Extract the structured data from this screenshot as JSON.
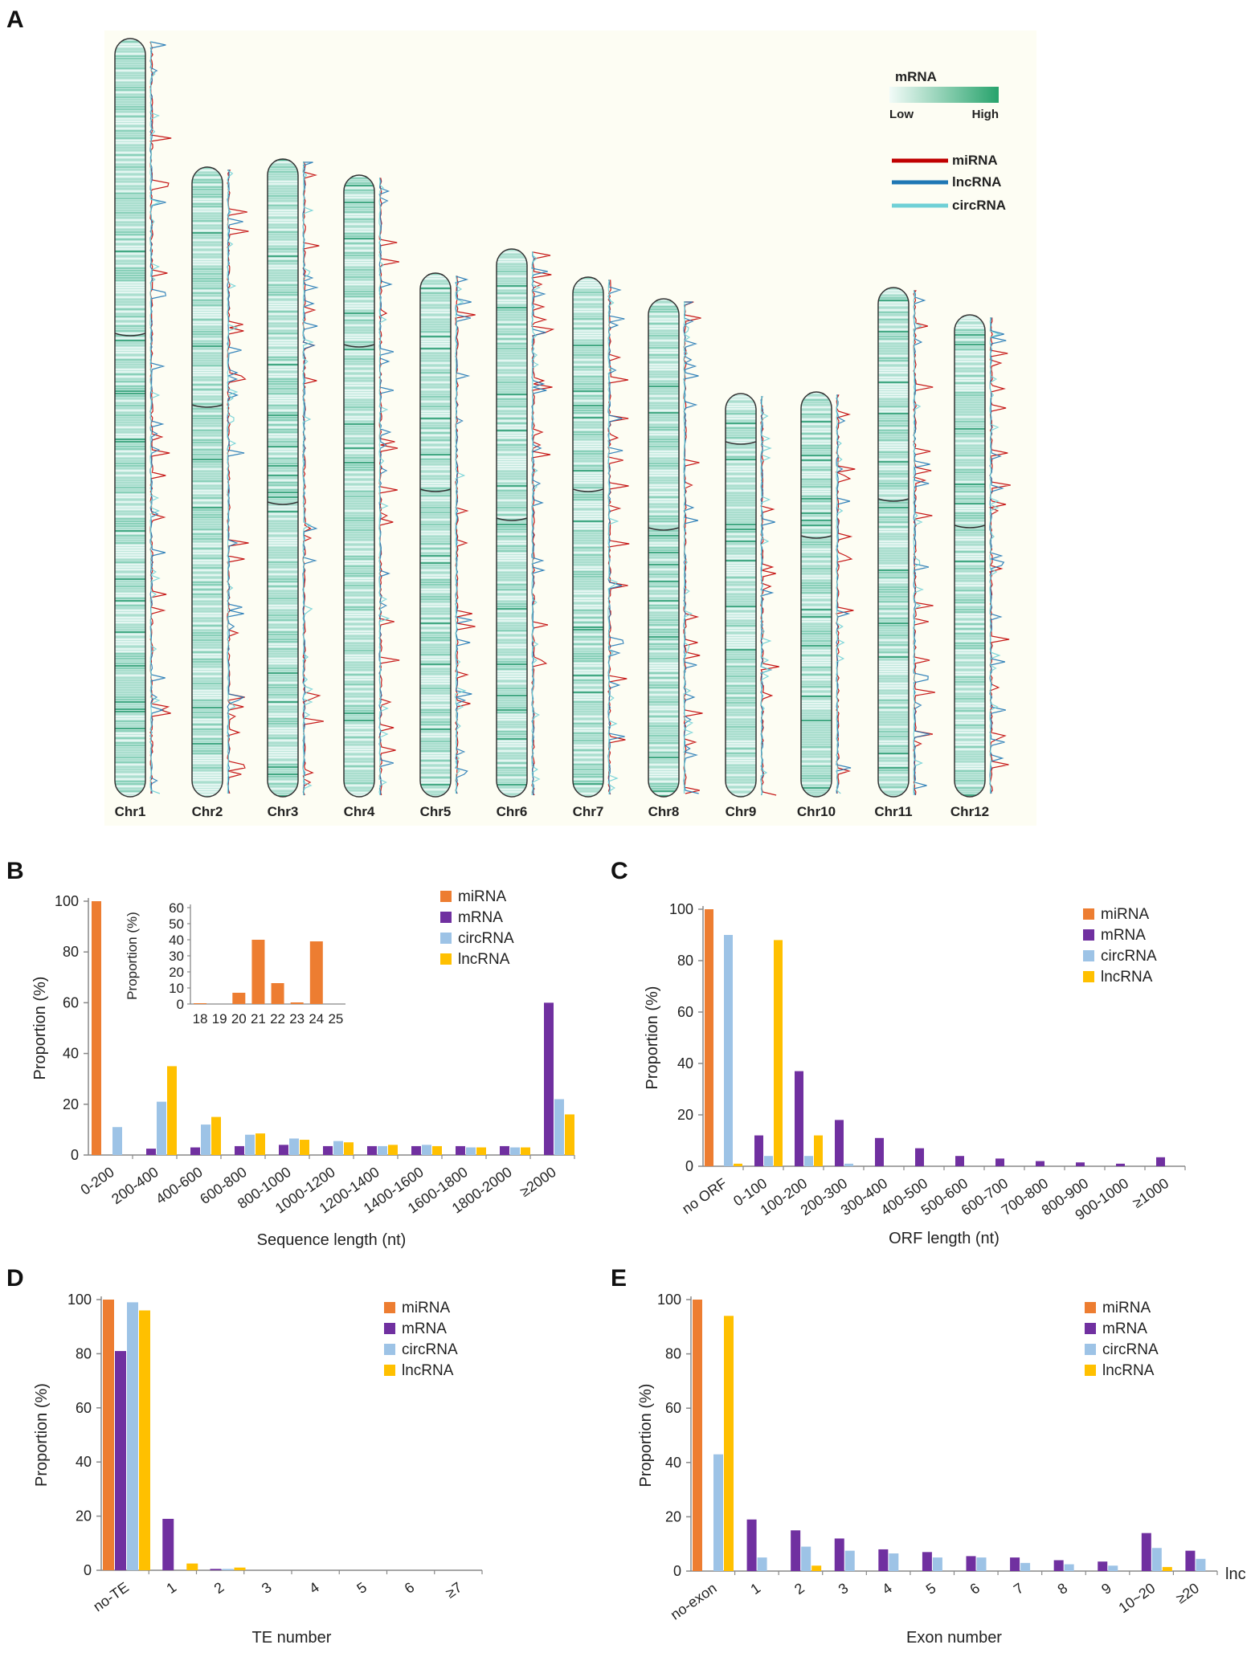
{
  "colors": {
    "miRNA": "#ed7d31",
    "mRNA": "#7030a0",
    "circRNA": "#9dc3e6",
    "lncRNA": "#ffc000",
    "panelA_bg": "#fdfdf3",
    "chrom_fill": "#bfe7dc",
    "chrom_dark": "#2e9e74",
    "track_red": "#c00000",
    "track_blue": "#1f77b4",
    "track_cyan": "#6fd0d6"
  },
  "panels": {
    "A": {
      "label": "A",
      "chromosomes": [
        "Chr1",
        "Chr2",
        "Chr3",
        "Chr4",
        "Chr5",
        "Chr6",
        "Chr7",
        "Chr8",
        "Chr9",
        "Chr10",
        "Chr11",
        "Chr12"
      ],
      "heat_legend": {
        "title": "mRNA",
        "low": "Low",
        "high": "High"
      },
      "line_legend": [
        "miRNA",
        "lncRNA",
        "circRNA"
      ]
    },
    "B": {
      "label": "B"
    },
    "C": {
      "label": "C"
    },
    "D": {
      "label": "D"
    },
    "E": {
      "label": "E"
    }
  },
  "chart_data": [
    {
      "id": "B",
      "type": "bar",
      "xlabel": "Sequence length (nt)",
      "ylabel": "Proportion (%)",
      "ylim": [
        0,
        100
      ],
      "yticks": [
        0,
        20,
        40,
        60,
        80,
        100
      ],
      "categories": [
        "0-200",
        "200-400",
        "400-600",
        "600-800",
        "800-1000",
        "1000-1200",
        "1200-1400",
        "1400-1600",
        "1600-1800",
        "1800-2000",
        "≥2000"
      ],
      "series": [
        {
          "name": "miRNA",
          "values": [
            100,
            0,
            0,
            0,
            0,
            0,
            0,
            0,
            0,
            0,
            0
          ]
        },
        {
          "name": "mRNA",
          "values": [
            0,
            2.5,
            3,
            3.5,
            4,
            3.5,
            3.5,
            3.5,
            3.5,
            3.5,
            60
          ]
        },
        {
          "name": "circRNA",
          "values": [
            11,
            21,
            12,
            8,
            6.5,
            5.5,
            3.5,
            4,
            3,
            3,
            22
          ]
        },
        {
          "name": "lncRNA",
          "values": [
            0,
            35,
            15,
            8.5,
            6,
            5,
            4,
            3.5,
            3,
            3,
            16
          ]
        }
      ],
      "inset": {
        "ylabel": "Proportion (%)",
        "ylim": [
          0,
          60
        ],
        "yticks": [
          0,
          10,
          20,
          30,
          40,
          50,
          60
        ],
        "categories": [
          "18",
          "19",
          "20",
          "21",
          "22",
          "23",
          "24",
          "25"
        ],
        "values": [
          0.5,
          0,
          7,
          40,
          13,
          1,
          39,
          0
        ]
      }
    },
    {
      "id": "C",
      "type": "bar",
      "xlabel": "ORF length (nt)",
      "ylabel": "Proportion (%)",
      "ylim": [
        0,
        100
      ],
      "yticks": [
        0,
        20,
        40,
        60,
        80,
        100
      ],
      "categories": [
        "no ORF",
        "0-100",
        "100-200",
        "200-300",
        "300-400",
        "400-500",
        "500-600",
        "600-700",
        "700-800",
        "800-900",
        "900-1000",
        "≥1000"
      ],
      "series": [
        {
          "name": "miRNA",
          "values": [
            100,
            0,
            0,
            0,
            0,
            0,
            0,
            0,
            0,
            0,
            0,
            0
          ]
        },
        {
          "name": "mRNA",
          "values": [
            0,
            12,
            37,
            18,
            11,
            7,
            4,
            3,
            2,
            1.5,
            1,
            3.5
          ]
        },
        {
          "name": "circRNA",
          "values": [
            90,
            4,
            4,
            1,
            0,
            0,
            0,
            0,
            0,
            0,
            0,
            0
          ]
        },
        {
          "name": "lncRNA",
          "values": [
            1,
            88,
            12,
            0,
            0,
            0,
            0,
            0,
            0,
            0,
            0,
            0
          ]
        }
      ]
    },
    {
      "id": "D",
      "type": "bar",
      "xlabel": "TE number",
      "ylabel": "Proportion (%)",
      "ylim": [
        0,
        100
      ],
      "yticks": [
        0,
        20,
        40,
        60,
        80,
        100
      ],
      "categories": [
        "no-TE",
        "1",
        "2",
        "3",
        "4",
        "5",
        "6",
        "≥7"
      ],
      "series": [
        {
          "name": "miRNA",
          "values": [
            100,
            0,
            0,
            0,
            0,
            0,
            0,
            0
          ]
        },
        {
          "name": "mRNA",
          "values": [
            81,
            19,
            0.5,
            0,
            0,
            0,
            0,
            0
          ]
        },
        {
          "name": "circRNA",
          "values": [
            99,
            0,
            0.5,
            0,
            0,
            0,
            0,
            0
          ]
        },
        {
          "name": "lncRNA",
          "values": [
            96,
            2.5,
            1,
            0,
            0,
            0,
            0,
            0
          ]
        }
      ]
    },
    {
      "id": "E",
      "type": "bar",
      "xlabel": "Exon number",
      "ylabel": "Proportion (%)",
      "ylim": [
        0,
        100
      ],
      "yticks": [
        0,
        20,
        40,
        60,
        80,
        100
      ],
      "categories": [
        "no-exon",
        "1",
        "2",
        "3",
        "4",
        "5",
        "6",
        "7",
        "8",
        "9",
        "10~20",
        "≥20"
      ],
      "trailing_label": "lnc",
      "series": [
        {
          "name": "miRNA",
          "values": [
            100,
            0,
            0,
            0,
            0,
            0,
            0,
            0,
            0,
            0,
            0,
            0
          ]
        },
        {
          "name": "mRNA",
          "values": [
            0,
            19,
            15,
            12,
            8,
            7,
            5.5,
            5,
            4,
            3.5,
            14,
            7.5
          ]
        },
        {
          "name": "circRNA",
          "values": [
            43,
            5,
            9,
            7.5,
            6.5,
            5,
            5,
            3,
            2.5,
            2,
            8.5,
            4.5
          ]
        },
        {
          "name": "lncRNA",
          "values": [
            94,
            0,
            2,
            0,
            0,
            0,
            0,
            0,
            0,
            0,
            1.5,
            0
          ]
        }
      ]
    }
  ]
}
